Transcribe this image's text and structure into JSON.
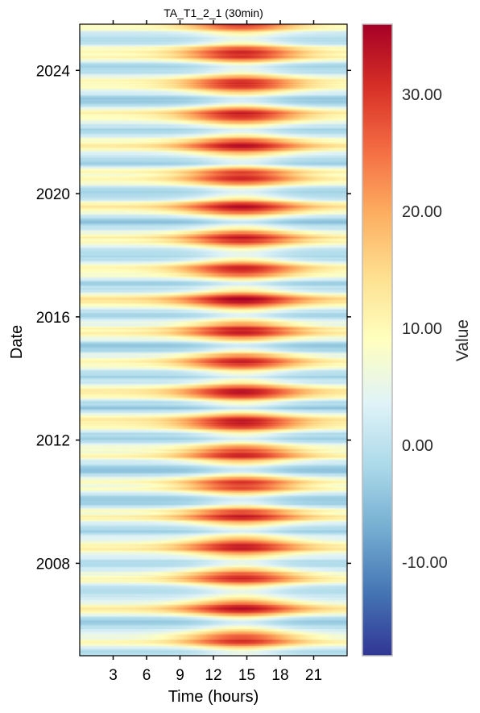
{
  "chart_data": {
    "type": "heatmap",
    "title": "TA_T1_2_1 (30min)",
    "xlabel": "Time (hours)",
    "ylabel": "Date",
    "x_range_hours": [
      0,
      24
    ],
    "x_ticks": [
      3,
      6,
      9,
      12,
      15,
      18,
      21
    ],
    "x_tick_labels": [
      "3",
      "6",
      "9",
      "12",
      "15",
      "18",
      "21"
    ],
    "x_resolution_minutes": 30,
    "y_range_years": [
      2005.0,
      2025.5
    ],
    "y_ticks": [
      2008,
      2012,
      2016,
      2020,
      2024
    ],
    "y_tick_labels": [
      "2008",
      "2012",
      "2016",
      "2020",
      "2024"
    ],
    "summer_peak_years": [
      2005,
      2006,
      2007,
      2008,
      2009,
      2010,
      2011,
      2012,
      2013,
      2014,
      2015,
      2016,
      2017,
      2018,
      2019,
      2020,
      2021,
      2022,
      2023,
      2024,
      2025
    ],
    "approx_summer_afternoon_max": 33,
    "approx_winter_night_min": -2,
    "colorbar": {
      "label": "Value",
      "range": [
        -18,
        36
      ],
      "ticks": [
        -10,
        0,
        10,
        20,
        30
      ],
      "tick_labels": [
        "-10.00",
        "0.00",
        "10.00",
        "20.00",
        "30.00"
      ],
      "colormap": "RdYlBu_r",
      "colors": [
        "#313695",
        "#4575b4",
        "#74add1",
        "#abd9e9",
        "#e0f3f8",
        "#ffffbf",
        "#fee090",
        "#fdae61",
        "#f46d43",
        "#d73027",
        "#a50026"
      ]
    },
    "grid": false,
    "legend": "colorbar-right"
  }
}
